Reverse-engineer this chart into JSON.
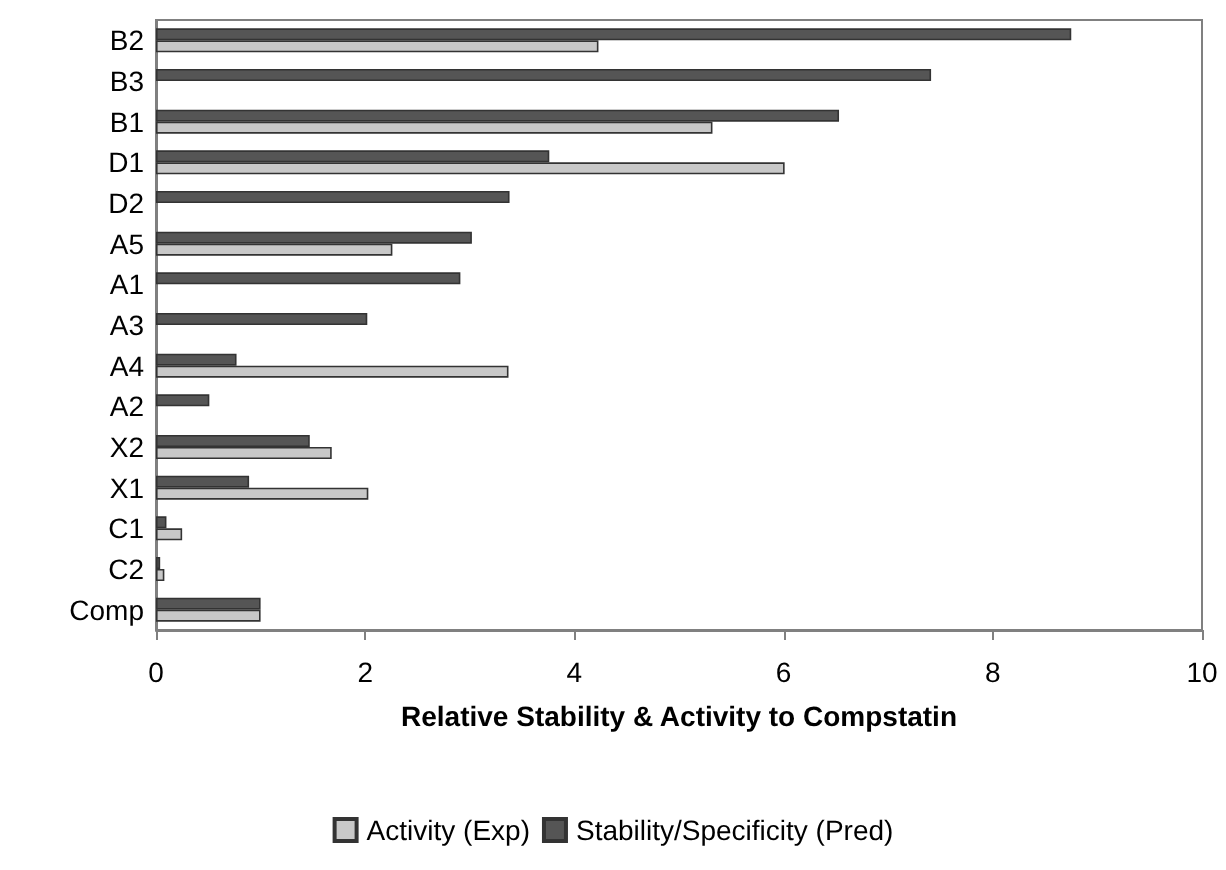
{
  "chart_data": {
    "type": "bar",
    "orientation": "horizontal",
    "xlabel": "Relative Stability & Activity to Compstatin",
    "categories": [
      "B2",
      "B3",
      "B1",
      "D1",
      "D2",
      "A5",
      "A1",
      "A3",
      "A4",
      "A2",
      "X2",
      "X1",
      "C1",
      "C2",
      "Comp"
    ],
    "series": [
      {
        "name": "Activity (Exp)",
        "color": "#c8c8c8",
        "values": [
          4.23,
          null,
          5.32,
          6.01,
          null,
          2.26,
          null,
          null,
          3.37,
          null,
          1.68,
          2.03,
          0.25,
          0.08,
          1.0
        ]
      },
      {
        "name": "Stability/Specificity (Pred)",
        "color": "#555555",
        "values": [
          8.75,
          7.41,
          6.53,
          3.76,
          3.38,
          3.02,
          2.91,
          2.02,
          0.77,
          0.51,
          1.47,
          0.89,
          0.1,
          0.04,
          1.0
        ]
      }
    ],
    "xlim": [
      0,
      10
    ],
    "xticks": [
      0,
      2,
      4,
      6,
      8,
      10
    ],
    "grid": false,
    "legend": "bottom"
  }
}
